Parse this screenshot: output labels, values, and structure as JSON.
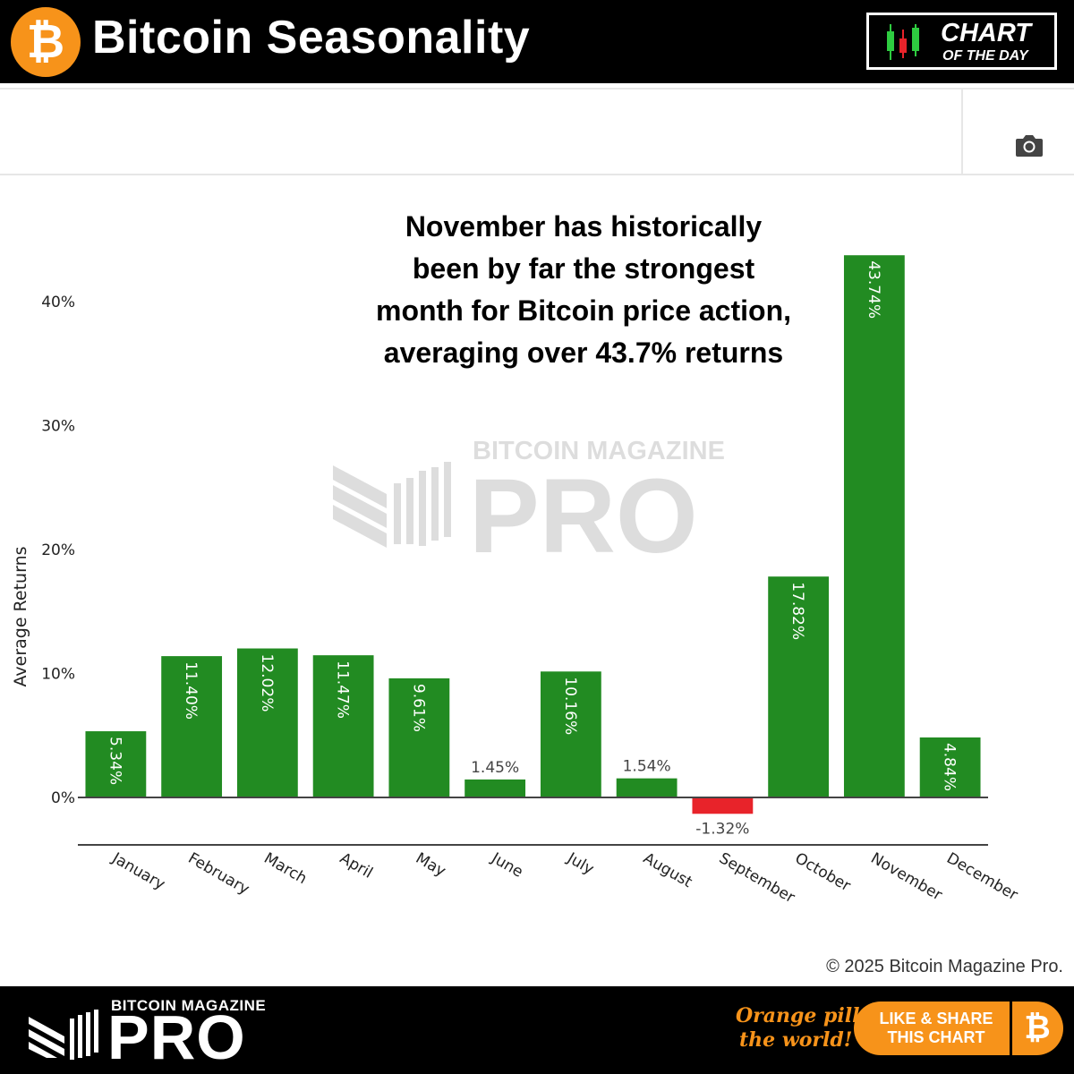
{
  "header": {
    "logo_symbol": "₿",
    "title": "Bitcoin Seasonality",
    "badge": {
      "line1": "CHART",
      "line2": "OF THE DAY"
    }
  },
  "toolbar": {
    "camera_icon": "camera-icon"
  },
  "annotation": {
    "lines": [
      "November has historically",
      "been by far the strongest",
      "month for Bitcoin price action,",
      "averaging over 43.7% returns"
    ]
  },
  "watermark": {
    "top": "BITCOIN MAGAZINE",
    "main": "PRO"
  },
  "colors": {
    "positive": "#228b22",
    "negative": "#e8232a",
    "accent": "#f7931a"
  },
  "chart_data": {
    "type": "bar",
    "title": "Bitcoin Seasonality",
    "xlabel": "",
    "ylabel": "Average Returns",
    "ylim": [
      -4,
      47
    ],
    "yticks": [
      0,
      10,
      20,
      30,
      40
    ],
    "ytick_labels": [
      "0%",
      "10%",
      "20%",
      "30%",
      "40%"
    ],
    "categories": [
      "January",
      "February",
      "March",
      "April",
      "May",
      "June",
      "July",
      "August",
      "September",
      "October",
      "November",
      "December"
    ],
    "values": [
      5.34,
      11.4,
      12.02,
      11.47,
      9.61,
      1.45,
      10.16,
      1.54,
      -1.32,
      17.82,
      43.74,
      4.84
    ],
    "data_labels": [
      "5.34%",
      "11.40%",
      "12.02%",
      "11.47%",
      "9.61%",
      "1.45%",
      "10.16%",
      "1.54%",
      "-1.32%",
      "17.82%",
      "43.74%",
      "4.84%"
    ]
  },
  "copyright": "© 2025 Bitcoin Magazine Pro.",
  "footer": {
    "brand_top": "BITCOIN MAGAZINE",
    "brand_main": "PRO",
    "tagline_line1": "Orange pill",
    "tagline_line2": "the world!",
    "share_line1": "LIKE & SHARE",
    "share_line2": "THIS CHART",
    "share_symbol": "₿"
  }
}
